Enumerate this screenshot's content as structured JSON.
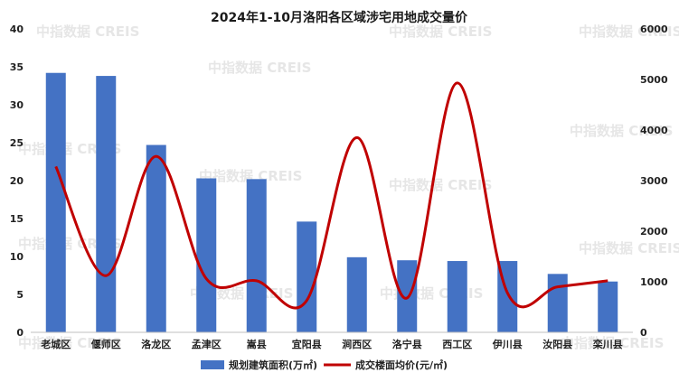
{
  "watermark": "中指数据 CREIS",
  "chart_data": {
    "type": "bar",
    "title": "2024年1-10月洛阳各区域涉宅用地成交量价",
    "categories": [
      "老城区",
      "偃师区",
      "洛龙区",
      "孟津区",
      "嵩县",
      "宜阳县",
      "涧西区",
      "洛宁县",
      "西工区",
      "伊川县",
      "汝阳县",
      "栾川县"
    ],
    "series": [
      {
        "name": "规划建筑面积(万㎡)",
        "type": "bar",
        "axis": "left",
        "color": "#4472C4",
        "values": [
          34.2,
          33.8,
          24.7,
          20.3,
          20.2,
          14.6,
          9.9,
          9.5,
          9.4,
          9.4,
          7.7,
          6.7
        ]
      },
      {
        "name": "成交楼面均价(元/㎡)",
        "type": "line",
        "axis": "right",
        "color": "#C00000",
        "smooth": true,
        "values": [
          3280,
          1120,
          3480,
          1060,
          1020,
          630,
          3850,
          680,
          4930,
          780,
          900,
          1020
        ]
      }
    ],
    "y_left": {
      "ylim": [
        0,
        40
      ],
      "ticks": [
        "0",
        "5",
        "10",
        "15",
        "20",
        "25",
        "30",
        "35",
        "40"
      ]
    },
    "y_right": {
      "ylim": [
        0,
        6000
      ],
      "ticks": [
        "0",
        "1000",
        "2000",
        "3000",
        "4000",
        "5000",
        "6000"
      ]
    },
    "grid": false,
    "legend": "bottom"
  }
}
